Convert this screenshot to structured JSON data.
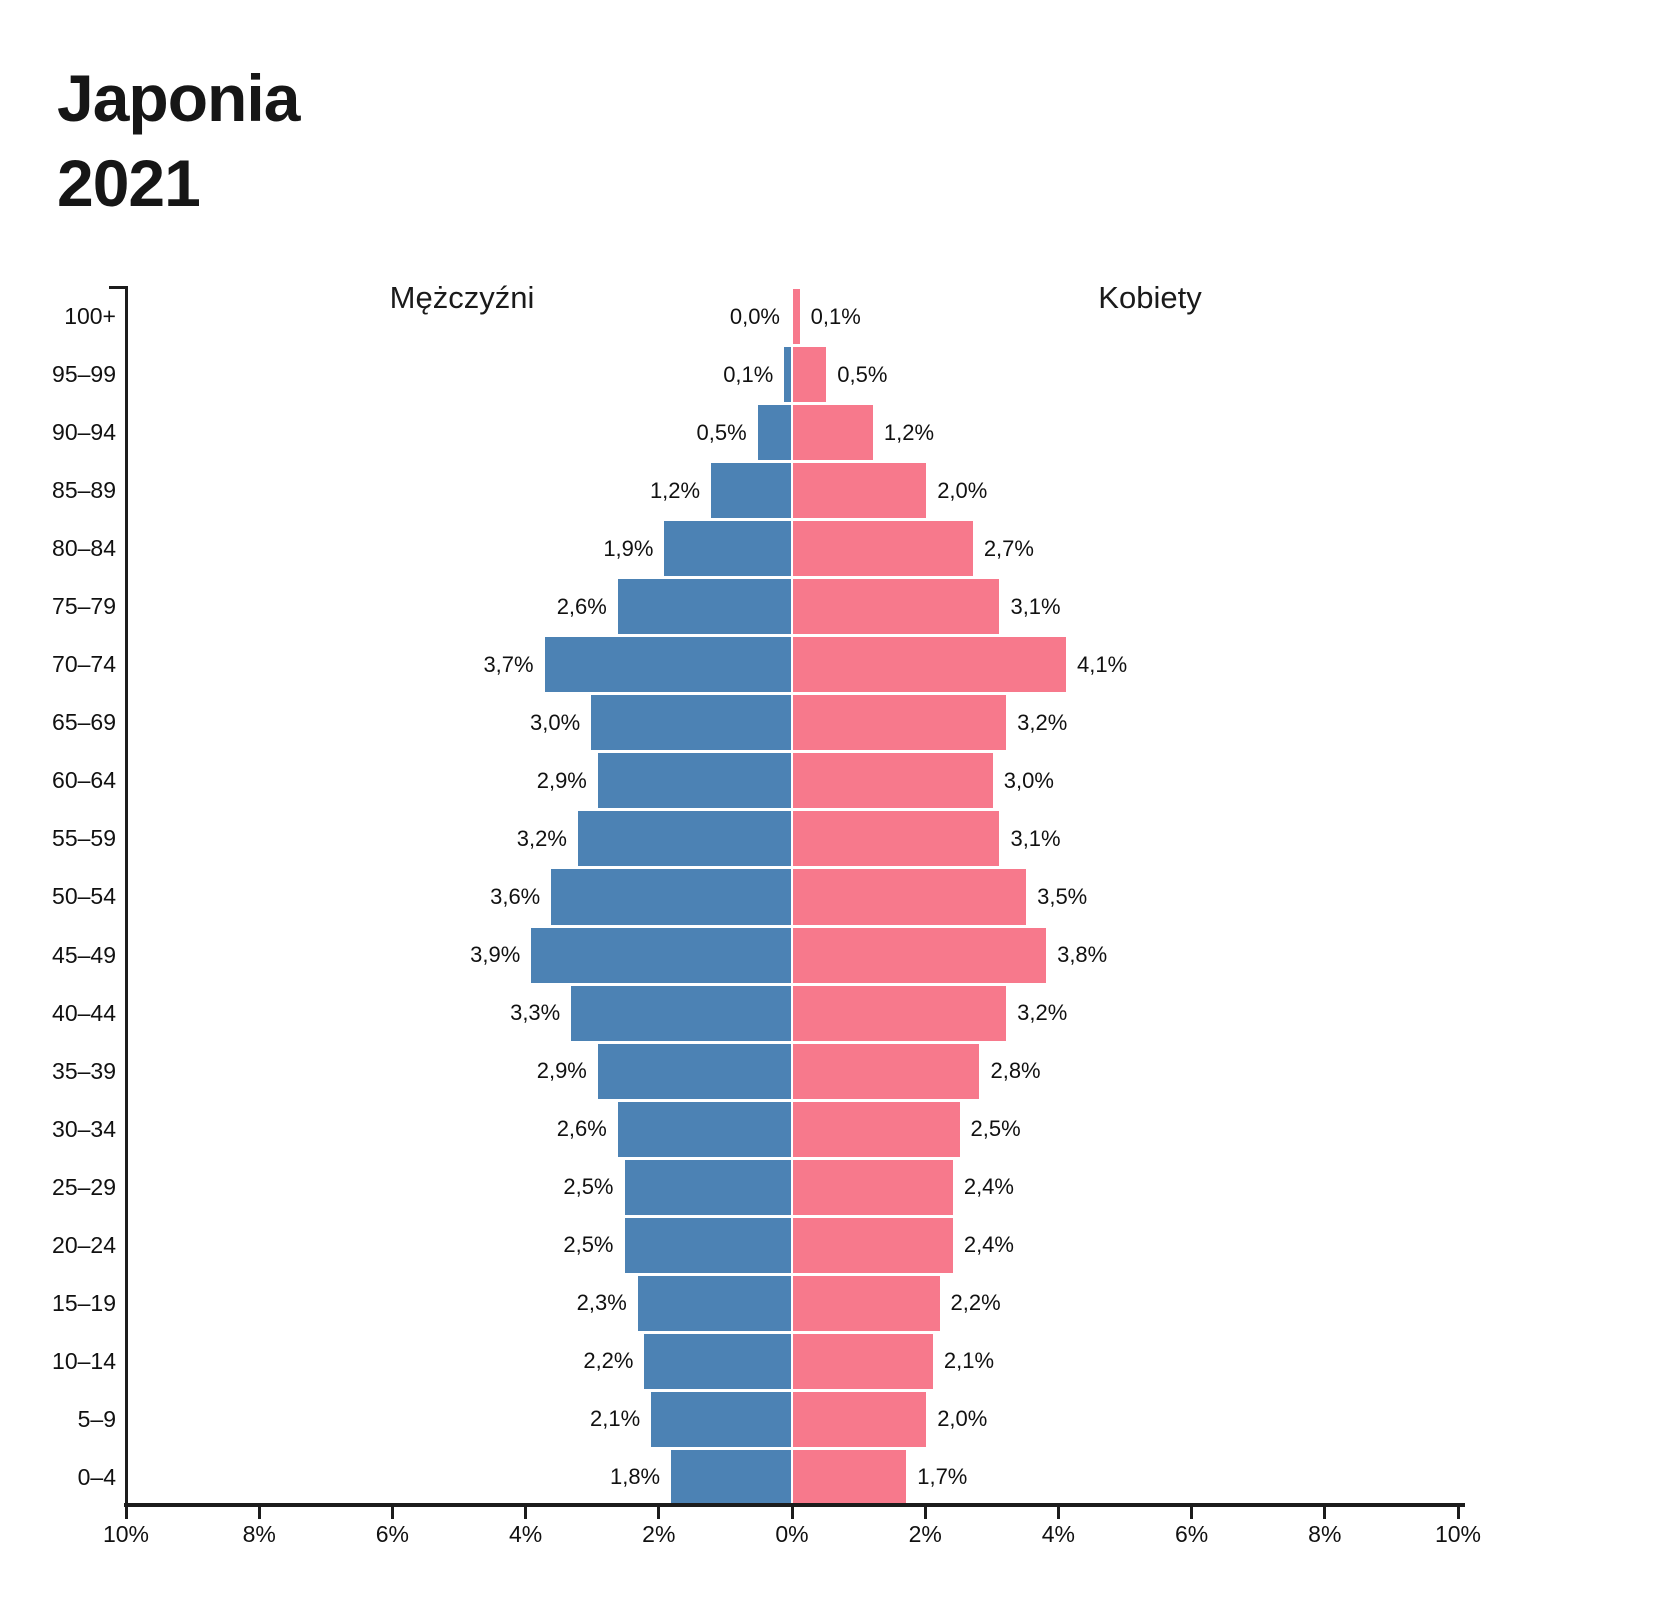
{
  "title": {
    "line1": "Japonia",
    "line2": "2021"
  },
  "chart_data": {
    "type": "bar",
    "variant": "population_pyramid",
    "title": "Japonia 2021",
    "left_series_label": "Mężczyźni",
    "right_series_label": "Kobiety",
    "unit": "%",
    "decimal_separator": ",",
    "grid": false,
    "axis_color": "#1c1c1c",
    "x_axis_range_each_side": [
      0,
      10
    ],
    "x_tick_values": [
      -10,
      -8,
      -6,
      -4,
      -2,
      0,
      2,
      4,
      6,
      8,
      10
    ],
    "x_tick_labels": [
      "10%",
      "8%",
      "6%",
      "4%",
      "2%",
      "0%",
      "2%",
      "4%",
      "6%",
      "8%",
      "10%"
    ],
    "age_groups": [
      "100+",
      "95–99",
      "90–94",
      "85–89",
      "80–84",
      "75–79",
      "70–74",
      "65–69",
      "60–64",
      "55–59",
      "50–54",
      "45–49",
      "40–44",
      "35–39",
      "30–34",
      "25–29",
      "20–24",
      "15–19",
      "10–14",
      "5–9",
      "0–4"
    ],
    "series": [
      {
        "name": "Mężczyźni",
        "side": "left",
        "color": "#4C82B4",
        "values": [
          0.0,
          0.1,
          0.5,
          1.2,
          1.9,
          2.6,
          3.7,
          3.0,
          2.9,
          3.2,
          3.6,
          3.9,
          3.3,
          2.9,
          2.6,
          2.5,
          2.5,
          2.3,
          2.2,
          2.1,
          1.8
        ],
        "value_labels": [
          "0,0%",
          "0,1%",
          "0,5%",
          "1,2%",
          "1,9%",
          "2,6%",
          "3,7%",
          "3,0%",
          "2,9%",
          "3,2%",
          "3,6%",
          "3,9%",
          "3,3%",
          "2,9%",
          "2,6%",
          "2,5%",
          "2,5%",
          "2,3%",
          "2,2%",
          "2,1%",
          "1,8%"
        ]
      },
      {
        "name": "Kobiety",
        "side": "right",
        "color": "#F7798C",
        "values": [
          0.1,
          0.5,
          1.2,
          2.0,
          2.7,
          3.1,
          4.1,
          3.2,
          3.0,
          3.1,
          3.5,
          3.8,
          3.2,
          2.8,
          2.5,
          2.4,
          2.4,
          2.2,
          2.1,
          2.0,
          1.7
        ],
        "value_labels": [
          "0,1%",
          "0,5%",
          "1,2%",
          "2,0%",
          "2,7%",
          "3,1%",
          "4,1%",
          "3,2%",
          "3,0%",
          "3,1%",
          "3,5%",
          "3,8%",
          "3,2%",
          "2,8%",
          "2,5%",
          "2,4%",
          "2,4%",
          "2,2%",
          "2,1%",
          "2,0%",
          "1,7%"
        ]
      }
    ]
  }
}
